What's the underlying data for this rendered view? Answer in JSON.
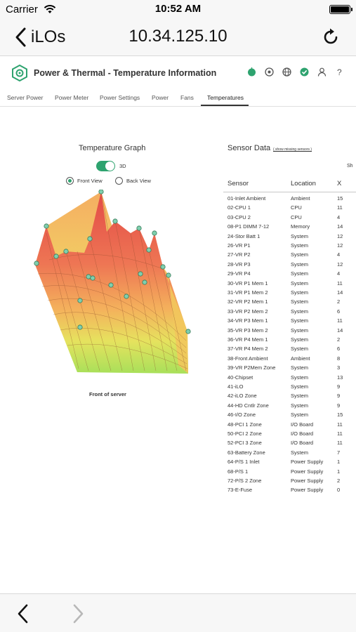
{
  "status_bar": {
    "carrier": "Carrier",
    "time": "10:52 AM"
  },
  "nav": {
    "back_label": "iLOs",
    "title": "10.34.125.10"
  },
  "header": {
    "title": "Power & Thermal - Temperature Information"
  },
  "tabs": [
    {
      "label": "Server Power"
    },
    {
      "label": "Power Meter"
    },
    {
      "label": "Power Settings"
    },
    {
      "label": "Power"
    },
    {
      "label": "Fans"
    },
    {
      "label": "Temperatures",
      "active": true
    }
  ],
  "graph": {
    "title": "Temperature Graph",
    "toggle_label": "3D",
    "front_view_label": "Front View",
    "back_view_label": "Back View",
    "caption": "Front of server"
  },
  "sensor_data": {
    "title": "Sensor Data",
    "link": "( show missing sensors )",
    "cut_text": "Sh",
    "headers": {
      "sensor": "Sensor",
      "location": "Location",
      "x": "X"
    },
    "rows": [
      {
        "sensor": "01-Inlet Ambient",
        "location": "Ambient",
        "x": "15"
      },
      {
        "sensor": "02-CPU 1",
        "location": "CPU",
        "x": "11"
      },
      {
        "sensor": "03-CPU 2",
        "location": "CPU",
        "x": "4"
      },
      {
        "sensor": "08-P1 DIMM 7-12",
        "location": "Memory",
        "x": "14"
      },
      {
        "sensor": "24-Stor Batt 1",
        "location": "System",
        "x": "12"
      },
      {
        "sensor": "26-VR P1",
        "location": "System",
        "x": "12"
      },
      {
        "sensor": "27-VR P2",
        "location": "System",
        "x": "4"
      },
      {
        "sensor": "28-VR P3",
        "location": "System",
        "x": "12"
      },
      {
        "sensor": "29-VR P4",
        "location": "System",
        "x": "4"
      },
      {
        "sensor": "30-VR P1 Mem 1",
        "location": "System",
        "x": "11"
      },
      {
        "sensor": "31-VR P1 Mem 2",
        "location": "System",
        "x": "14"
      },
      {
        "sensor": "32-VR P2 Mem 1",
        "location": "System",
        "x": "2"
      },
      {
        "sensor": "33-VR P2 Mem 2",
        "location": "System",
        "x": "6"
      },
      {
        "sensor": "34-VR P3 Mem 1",
        "location": "System",
        "x": "11"
      },
      {
        "sensor": "35-VR P3 Mem 2",
        "location": "System",
        "x": "14"
      },
      {
        "sensor": "36-VR P4 Mem 1",
        "location": "System",
        "x": "2"
      },
      {
        "sensor": "37-VR P4 Mem 2",
        "location": "System",
        "x": "6"
      },
      {
        "sensor": "38-Front Ambient",
        "location": "Ambient",
        "x": "8"
      },
      {
        "sensor": "39-VR P2Mem Zone",
        "location": "System",
        "x": "3"
      },
      {
        "sensor": "40-Chipset",
        "location": "System",
        "x": "13"
      },
      {
        "sensor": "41-iLO",
        "location": "System",
        "x": "9"
      },
      {
        "sensor": "42-iLO Zone",
        "location": "System",
        "x": "9"
      },
      {
        "sensor": "44-HD Cntlr Zone",
        "location": "System",
        "x": "9"
      },
      {
        "sensor": "46-I/O Zone",
        "location": "System",
        "x": "15"
      },
      {
        "sensor": "48-PCI 1 Zone",
        "location": "I/O Board",
        "x": "11"
      },
      {
        "sensor": "50-PCI 2 Zone",
        "location": "I/O Board",
        "x": "11"
      },
      {
        "sensor": "52-PCI 3 Zone",
        "location": "I/O Board",
        "x": "11"
      },
      {
        "sensor": "63-Battery Zone",
        "location": "System",
        "x": "7"
      },
      {
        "sensor": "64-P/S 1 Inlet",
        "location": "Power Supply",
        "x": "1"
      },
      {
        "sensor": "68-P/S 1",
        "location": "Power Supply",
        "x": "1"
      },
      {
        "sensor": "72-P/S 2 Zone",
        "location": "Power Supply",
        "x": "2"
      },
      {
        "sensor": "73-E-Fuse",
        "location": "Power Supply",
        "x": "0"
      }
    ]
  },
  "colors": {
    "accent": "#2ea36f",
    "surface_hot": "#e8604a",
    "surface_warm": "#f0b15a",
    "surface_cool": "#b8e06a"
  }
}
